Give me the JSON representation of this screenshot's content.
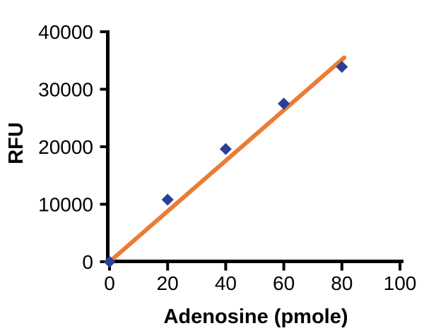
{
  "figure": {
    "background": "#ffffff"
  },
  "chart_data": {
    "type": "scatter",
    "xlabel": "Adenosine (pmole)",
    "ylabel": "RFU",
    "x": [
      0,
      20,
      40,
      60,
      80
    ],
    "y": [
      0,
      10800,
      19600,
      27500,
      33900
    ],
    "trendline": {
      "x1": 0,
      "y1": 0,
      "x2": 80.8,
      "y2": 35500
    },
    "xlim": [
      0,
      100
    ],
    "ylim": [
      0,
      40000
    ],
    "xticks": [
      0,
      20,
      40,
      60,
      80,
      100
    ],
    "yticks": [
      0,
      10000,
      20000,
      30000,
      40000
    ],
    "grid": false,
    "legend": "none",
    "marker_shape": "diamond",
    "colors": {
      "marker": "#2b3f94",
      "trendline": "#ea7d36",
      "axis": "#000000",
      "tick_label": "#000000"
    }
  }
}
